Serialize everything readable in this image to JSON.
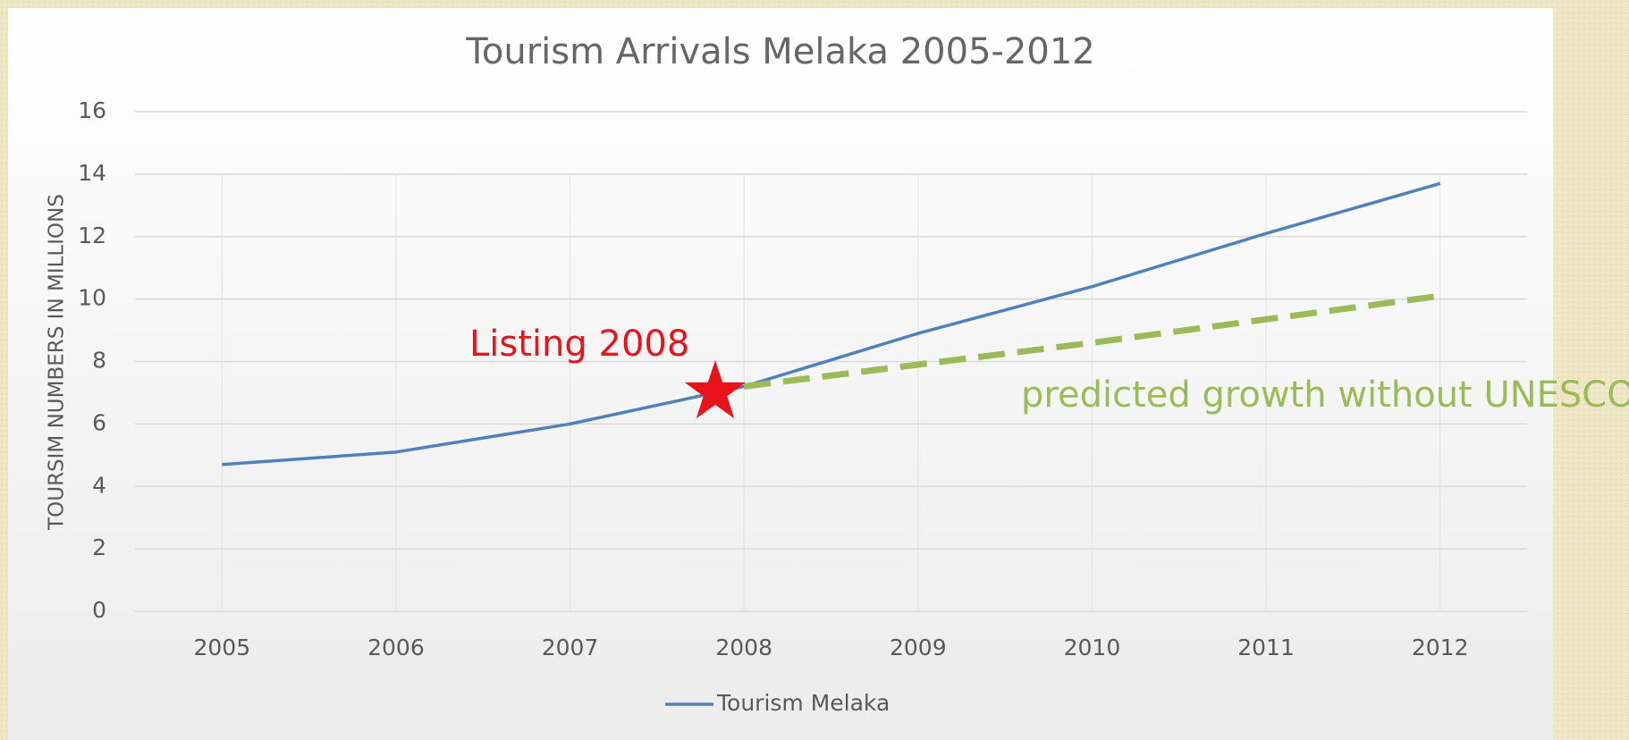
{
  "chart_data": {
    "type": "line",
    "title": "Tourism Arrivals Melaka 2005-2012",
    "y_label": "TOURSIM NUMBERS IN MILLIONS",
    "categories": [
      "2005",
      "2006",
      "2007",
      "2008",
      "2009",
      "2010",
      "2011",
      "2012"
    ],
    "series": [
      {
        "name": "Tourism Melaka",
        "color": "#4f81bd",
        "style": "solid",
        "in_legend": true,
        "values": [
          4.7,
          5.1,
          6.0,
          7.2,
          8.9,
          10.4,
          12.1,
          13.7
        ]
      },
      {
        "name": "predicted growth without UNESCO",
        "color": "#9bbb59",
        "style": "dashed",
        "in_legend": false,
        "values": [
          null,
          null,
          null,
          7.2,
          7.9,
          8.6,
          9.35,
          10.1
        ]
      }
    ],
    "annotations": [
      {
        "text": "Listing 2008",
        "color": "#e8141c"
      }
    ],
    "ylim": [
      0,
      16
    ],
    "yticks": [
      0,
      2,
      4,
      6,
      8,
      10,
      12,
      14,
      16
    ],
    "grid": true,
    "legend": "bottom"
  }
}
